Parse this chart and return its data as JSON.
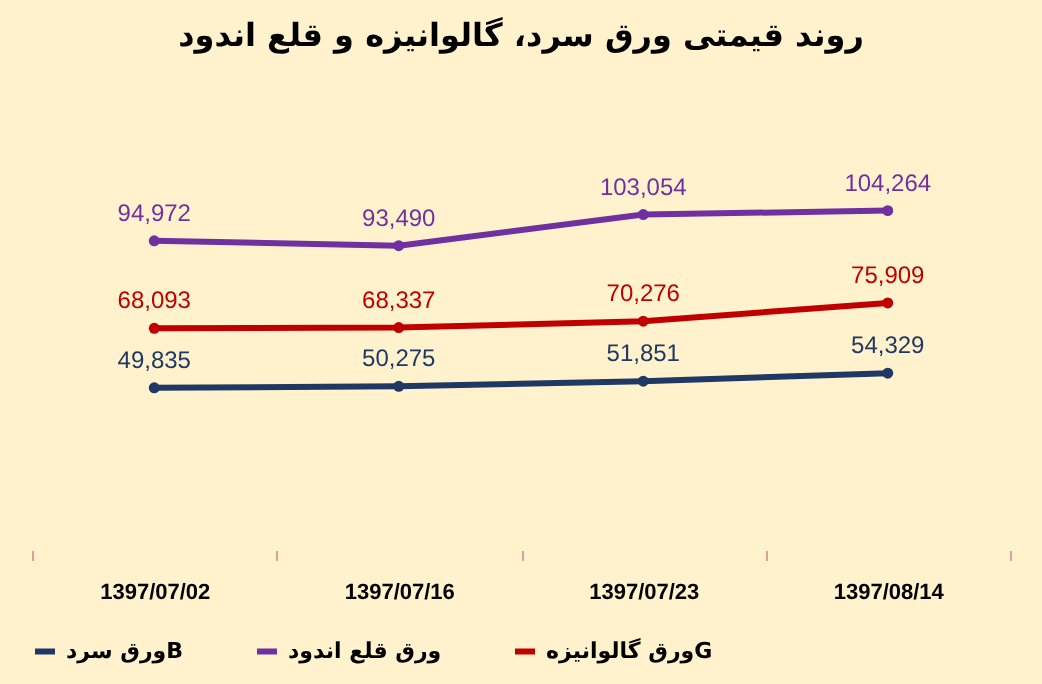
{
  "chart_data": {
    "type": "line",
    "title": "روند قیمتی ورق سرد، گالوانیزه و قلع اندود",
    "categories": [
      "1397/07/02",
      "1397/07/16",
      "1397/07/23",
      "1397/08/14"
    ],
    "series": [
      {
        "name": "ورق سردB",
        "color": "#1f3864",
        "values": [
          49835,
          50275,
          51851,
          54329
        ],
        "value_labels": [
          "49,835",
          "50,275",
          "51,851",
          "54,329"
        ]
      },
      {
        "name": "ورق قلع اندود",
        "color": "#7030a0",
        "values": [
          94972,
          93490,
          103054,
          104264
        ],
        "value_labels": [
          "94,972",
          "93,490",
          "103,054",
          "104,264"
        ]
      },
      {
        "name": "ورق گالوانیزهG",
        "color": "#c00000",
        "values": [
          68093,
          68337,
          70276,
          75909
        ],
        "value_labels": [
          "68,093",
          "68,337",
          "70,276",
          "75,909"
        ]
      }
    ],
    "legend": "bottom",
    "marker": "circle",
    "line_style": "solid",
    "grid": false
  }
}
